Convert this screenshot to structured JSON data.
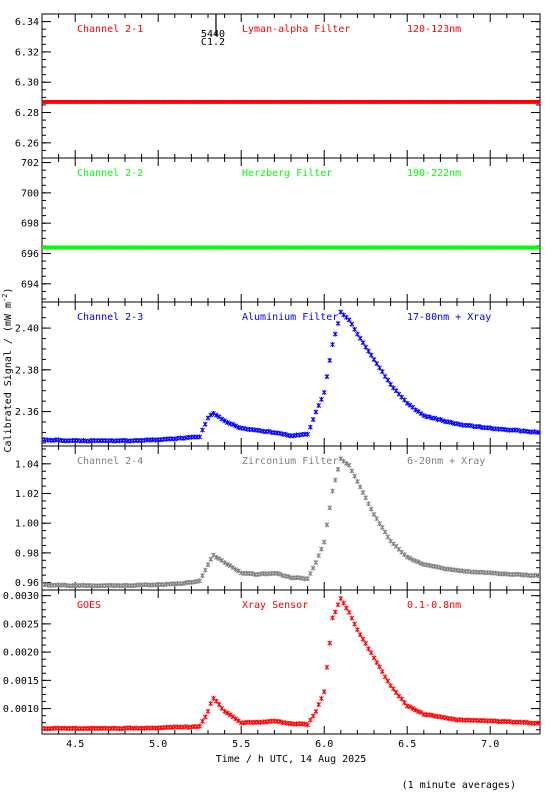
{
  "figure": {
    "ylabel": "Calibrated Signal / (mW m",
    "ylabel_sup": "-2",
    "ylabel_close": ")",
    "xlabel": "Time / h UTC, 14 Aug 2025",
    "footnote": "(1 minute averages)",
    "flare_marker": {
      "line1": "5440",
      "line2": "C1.2",
      "time": 5.33
    }
  },
  "chart_data": [
    {
      "type": "scatter",
      "channel": "Channel 2-1",
      "filter": "Lyman-alpha Filter",
      "band": "120-123nm",
      "color": "#ff0000",
      "ylim": [
        6.25,
        6.345
      ],
      "yticks": [
        6.26,
        6.28,
        6.3,
        6.32,
        6.34
      ],
      "ytick_labels": [
        "6.26",
        "6.28",
        "6.30",
        "6.32",
        "6.34"
      ],
      "series": [
        {
          "x": [
            4.3,
            7.3
          ],
          "y": [
            6.287,
            6.287
          ]
        }
      ],
      "kind": "flat"
    },
    {
      "type": "scatter",
      "channel": "Channel 2-2",
      "filter": "Herzberg Filter",
      "band": "190-222nm",
      "color": "#00ff00",
      "ylim": [
        692.8,
        702.3
      ],
      "yticks": [
        694,
        696,
        698,
        700,
        702
      ],
      "ytick_labels": [
        "694",
        "696",
        "698",
        "700",
        "702"
      ],
      "series": [
        {
          "x": [
            4.3,
            7.3
          ],
          "y": [
            696.4,
            696.4
          ]
        }
      ],
      "kind": "flat"
    },
    {
      "type": "scatter",
      "channel": "Channel 2-3",
      "filter": "Aluminium Filter",
      "band": "17-80nm + Xray",
      "color": "#0000ff",
      "ylim": [
        2.3435,
        2.4125
      ],
      "yticks": [
        2.36,
        2.38,
        2.4
      ],
      "ytick_labels": [
        "2.36",
        "2.38",
        "2.40"
      ],
      "series": [
        {
          "x": [
            4.3,
            4.5,
            4.8,
            5.0,
            5.1,
            5.25,
            5.3,
            5.33,
            5.4,
            5.5,
            5.6,
            5.7,
            5.8,
            5.9,
            5.95,
            6.0,
            6.05,
            6.1,
            6.15,
            6.2,
            6.3,
            6.4,
            6.5,
            6.6,
            6.8,
            7.0,
            7.3
          ],
          "y": [
            2.3465,
            2.346,
            2.346,
            2.3465,
            2.347,
            2.348,
            2.357,
            2.3595,
            2.3555,
            2.352,
            2.351,
            2.35,
            2.3485,
            2.349,
            2.36,
            2.369,
            2.392,
            2.4075,
            2.404,
            2.397,
            2.385,
            2.373,
            2.364,
            2.358,
            2.354,
            2.352,
            2.35
          ]
        }
      ]
    },
    {
      "type": "scatter",
      "channel": "Channel 2-4",
      "filter": "Zirconium Filter",
      "band": "6-20nm + Xray",
      "color": "#808080",
      "ylim": [
        0.955,
        1.052
      ],
      "yticks": [
        0.96,
        0.98,
        1.0,
        1.02,
        1.04
      ],
      "ytick_labels": [
        "0.96",
        "0.98",
        "1.00",
        "1.02",
        "1.04"
      ],
      "series": [
        {
          "x": [
            4.3,
            4.5,
            4.8,
            5.0,
            5.1,
            5.25,
            5.3,
            5.33,
            5.4,
            5.5,
            5.6,
            5.7,
            5.8,
            5.9,
            5.95,
            6.0,
            6.05,
            6.1,
            6.15,
            6.2,
            6.3,
            6.4,
            6.5,
            6.6,
            6.8,
            7.0,
            7.3
          ],
          "y": [
            0.9585,
            0.958,
            0.958,
            0.9585,
            0.959,
            0.961,
            0.972,
            0.9785,
            0.9735,
            0.9665,
            0.9655,
            0.9665,
            0.9635,
            0.9625,
            0.9735,
            0.9875,
            1.022,
            1.0435,
            1.039,
            1.028,
            1.006,
            0.988,
            0.977,
            0.972,
            0.968,
            0.9665,
            0.9645
          ]
        }
      ]
    },
    {
      "type": "scatter",
      "channel": "GOES",
      "filter": "Xray Sensor",
      "band": "0.1-0.8nm",
      "color": "#ff0000",
      "ylim": [
        0.00055,
        0.0031
      ],
      "yticks": [
        0.001,
        0.0015,
        0.002,
        0.0025,
        0.003
      ],
      "ytick_labels": [
        "0.0010",
        "0.0015",
        "0.0020",
        "0.0025",
        "0.0030"
      ],
      "series": [
        {
          "x": [
            4.3,
            4.5,
            4.8,
            5.0,
            5.1,
            5.25,
            5.3,
            5.33,
            5.4,
            5.5,
            5.6,
            5.7,
            5.8,
            5.9,
            5.95,
            6.0,
            6.05,
            6.1,
            6.15,
            6.2,
            6.3,
            6.4,
            6.5,
            6.6,
            6.8,
            7.0,
            7.3
          ],
          "y": [
            0.00065,
            0.00065,
            0.00065,
            0.00066,
            0.00067,
            0.00068,
            0.00095,
            0.0012,
            0.00095,
            0.00075,
            0.00076,
            0.00078,
            0.00073,
            0.00072,
            0.00095,
            0.0013,
            0.0026,
            0.00295,
            0.0027,
            0.0024,
            0.0019,
            0.0014,
            0.00105,
            0.0009,
            0.0008,
            0.00078,
            0.00074
          ]
        }
      ]
    }
  ],
  "xaxis": {
    "xlim": [
      4.3,
      7.3
    ],
    "ticks": [
      4.5,
      5.0,
      5.5,
      6.0,
      6.5,
      7.0
    ],
    "tick_labels": [
      "4.5",
      "5.0",
      "5.5",
      "6.0",
      "6.5",
      "7.0"
    ]
  }
}
